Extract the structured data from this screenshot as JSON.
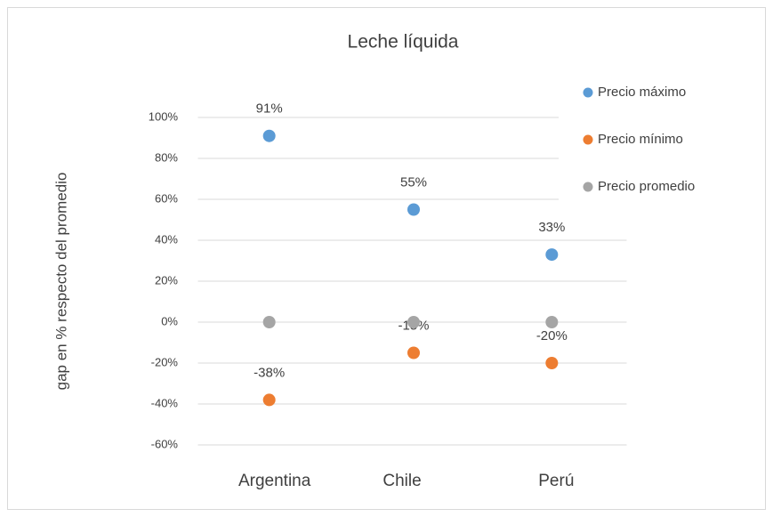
{
  "chart_data": {
    "type": "scatter",
    "title": "Leche líquida",
    "y_label": "gap en % respecto del promedio",
    "categories": [
      "Argentina",
      "Chile",
      "Perú"
    ],
    "series": [
      {
        "name": "Precio máximo",
        "color": "#5b9bd5",
        "values": [
          91,
          55,
          33
        ],
        "value_labels": [
          "91%",
          "55%",
          "33%"
        ]
      },
      {
        "name": "Precio mínimo",
        "color": "#ed7d31",
        "values": [
          -38,
          -15,
          -20
        ],
        "value_labels": [
          "-38%",
          "-15%",
          "-20%"
        ]
      },
      {
        "name": "Precio promedio",
        "color": "#a5a5a5",
        "values": [
          0,
          0,
          0
        ]
      }
    ],
    "ylim": [
      -60,
      100
    ],
    "yticks": [
      {
        "value": -60,
        "label": "-60%"
      },
      {
        "value": -40,
        "label": "-40%"
      },
      {
        "value": -20,
        "label": "-20%"
      },
      {
        "value": 0,
        "label": "0%"
      },
      {
        "value": 20,
        "label": "20%"
      },
      {
        "value": 40,
        "label": "40%"
      },
      {
        "value": 60,
        "label": "60%"
      },
      {
        "value": 80,
        "label": "80%"
      },
      {
        "value": 100,
        "label": "100%"
      }
    ],
    "grid": true,
    "legend": "right"
  }
}
